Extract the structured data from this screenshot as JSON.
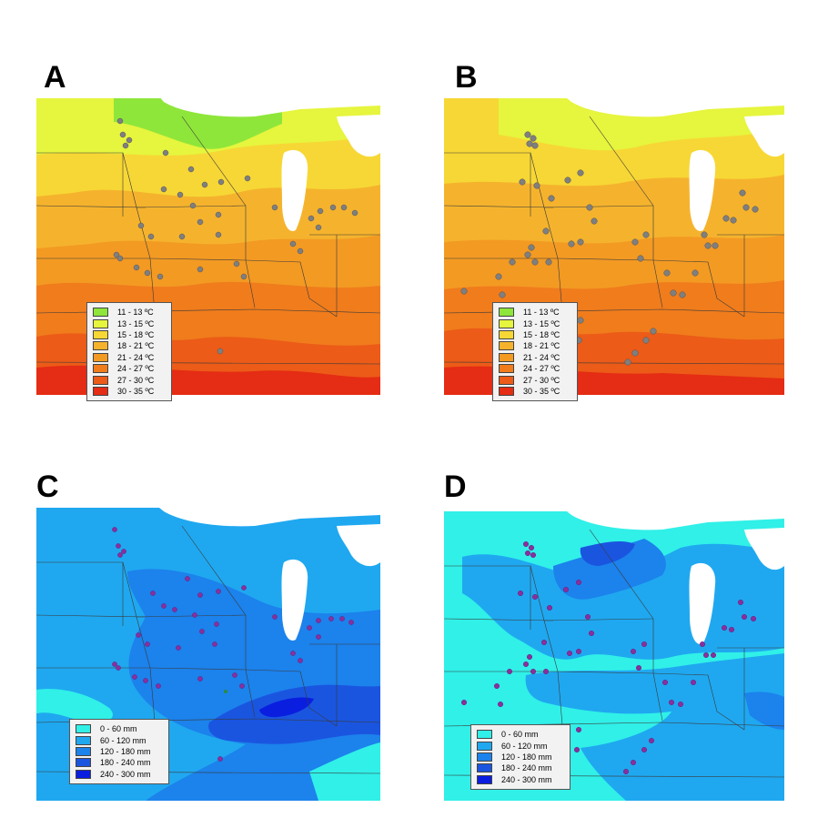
{
  "panels": [
    {
      "letter": "A",
      "variable": "temperature",
      "dot_color": "#7f7f7f",
      "legend": [
        {
          "label": "11 - 13 ºC",
          "color": "#8fe63a"
        },
        {
          "label": "13 - 15 ºC",
          "color": "#e6f53d"
        },
        {
          "label": "15 - 18 ºC",
          "color": "#f7d735"
        },
        {
          "label": "18 - 21 ºC",
          "color": "#f5b32d"
        },
        {
          "label": "21 - 24 ºC",
          "color": "#f39a23"
        },
        {
          "label": "24 - 27 ºC",
          "color": "#f07c1c"
        },
        {
          "label": "27 - 30 ºC",
          "color": "#ec5b18"
        },
        {
          "label": "30 - 35 ºC",
          "color": "#e52c14"
        }
      ]
    },
    {
      "letter": "B",
      "variable": "temperature",
      "dot_color": "#7f7f7f",
      "legend": [
        {
          "label": "11 - 13 ºC",
          "color": "#8fe63a"
        },
        {
          "label": "13 - 15 ºC",
          "color": "#e6f53d"
        },
        {
          "label": "15 - 18 ºC",
          "color": "#f7d735"
        },
        {
          "label": "18 - 21 ºC",
          "color": "#f5b32d"
        },
        {
          "label": "21 - 24 ºC",
          "color": "#f39a23"
        },
        {
          "label": "24 - 27 ºC",
          "color": "#f07c1c"
        },
        {
          "label": "27 - 30 ºC",
          "color": "#ec5b18"
        },
        {
          "label": "30 - 35 ºC",
          "color": "#e52c14"
        }
      ]
    },
    {
      "letter": "C",
      "variable": "precipitation",
      "dot_color": "#8a2f9e",
      "legend": [
        {
          "label": "0 - 60 mm",
          "color": "#30f0e8"
        },
        {
          "label": "60 - 120 mm",
          "color": "#1fa8f0"
        },
        {
          "label": "120 - 180 mm",
          "color": "#1c82ec"
        },
        {
          "label": "180 - 240 mm",
          "color": "#1a55e0"
        },
        {
          "label": "240 - 300 mm",
          "color": "#0a1ee0"
        }
      ]
    },
    {
      "letter": "D",
      "variable": "precipitation",
      "dot_color": "#8a2f9e",
      "legend": [
        {
          "label": "0 - 60 mm",
          "color": "#30f0e8"
        },
        {
          "label": "60 - 120 mm",
          "color": "#1fa8f0"
        },
        {
          "label": "120 - 180 mm",
          "color": "#1c82ec"
        },
        {
          "label": "180 - 240 mm",
          "color": "#1a55e0"
        },
        {
          "label": "240 - 300 mm",
          "color": "#0a1ee0"
        }
      ]
    }
  ],
  "colors": {
    "water": "#ffffff",
    "boundary": "#3a3a3a"
  }
}
